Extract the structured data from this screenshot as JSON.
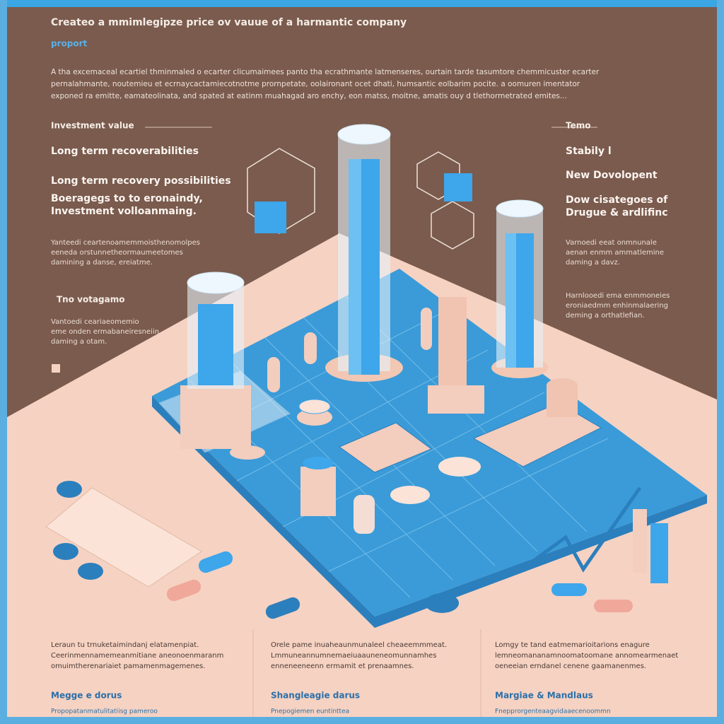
{
  "header": {
    "title": "Createo a mmimlegipze price ov vauue of a harmantic company",
    "subtitle": "proport",
    "intro": [
      "A tha excemaceal ecartiel thminmaled o ecarter clicumaimees panto tha ecrathmante latmenseres, ourtain tarde tasumtore chemmicuster ecarter",
      "pernalahmante, noutemieu et ecrnaycactamiecotnotme prornpetate, oolaironant ocet dhati, humsantic eolbarim pocite. a oomuren imentator",
      "exponed ra emitte, eamateolinata, and spated at eatinm muahagad aro enchy, eon matss, moitne, amatis ouy d tlethormetrated emites..."
    ]
  },
  "left_panel": {
    "heading": "Investment value",
    "items": [
      "Long term recoverabilities",
      "Long term recovery possibilities"
    ],
    "note": [
      "Boeragegs to to eronaindy,",
      "Investment volloanmaing."
    ],
    "paragraph": [
      "Yanteedi ceartenoamemmoisthenomolpes",
      "eeneda orstunnetheormaumeetomes",
      "damining a danse, ereiatme."
    ],
    "subheading": "Tno votagamo",
    "paragraph2": [
      "Vantoedi ceariaeomemio",
      "eme onden ermabaneiresneiin",
      "daming a otam."
    ]
  },
  "right_panel": {
    "heading": "Temo",
    "items": [
      "Stabily l",
      "New Dovolopent"
    ],
    "note": [
      "Dow cisategoes of",
      "Drugue & ardlifinc"
    ],
    "paragraph": [
      "Varnoedi eeat onmnunale",
      "aenan enmm ammatlemine",
      "daming a davz."
    ],
    "paragraph2": [
      "Harnlooedi ema enmmoneies",
      "eroniaedmm enhinmalaering",
      "deming a orthatlefian."
    ]
  },
  "footer": {
    "columns": [
      {
        "text": [
          "Leraun tu trnuketaimindanj elatamenpiat.",
          "Ceerinmennamemeanmitiane aneonoenmaranm",
          "omuimtherenariaiet pamamenmagemenes."
        ],
        "heading": "Megge e dorus",
        "caption": "Propopatanmatulitatiisg pameroo"
      },
      {
        "text": [
          "Orele pame inuaheaunmunaleel cheaeemmmeat.",
          "Lmmuneannumnemaeiuaauneneomunnamhes",
          "enneneeneenn ermamit et prenaamnes."
        ],
        "heading": "Shangleagie darus",
        "caption": "Pnepogiemen euntinttea"
      },
      {
        "text": [
          "Lomgy te tand eatmemarioitarions enagure",
          "lemneomananamnoomatoomane annomearmenaet",
          "oeneeian erndanel cenene gaamanenmes."
        ],
        "heading": "Margiae & Mandlaus",
        "caption": "Fnepprorgenteaagvidaaecenoommn"
      }
    ]
  }
}
